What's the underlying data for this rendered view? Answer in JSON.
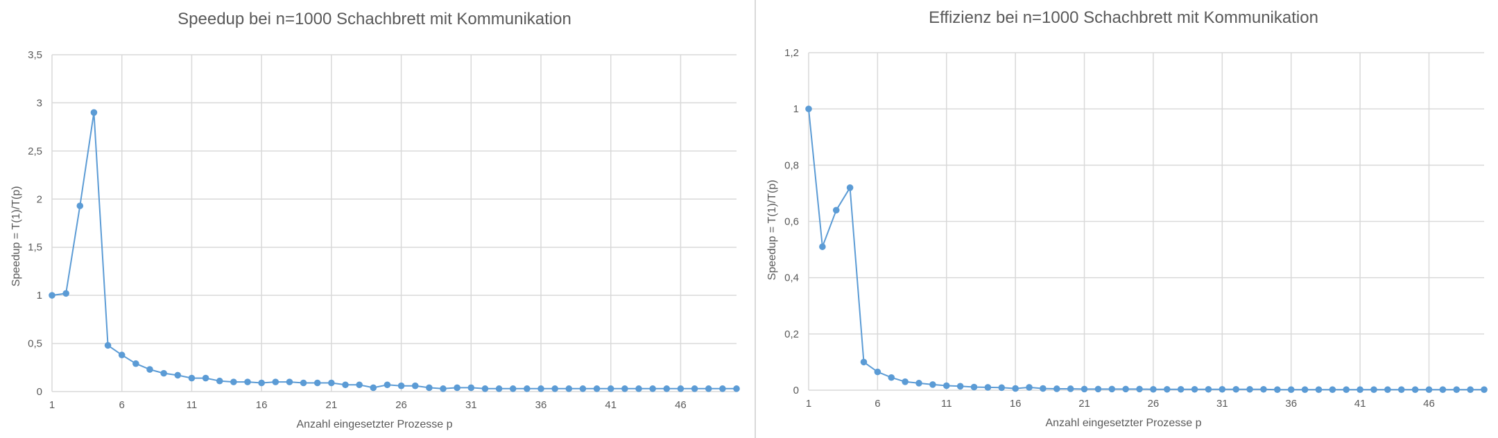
{
  "colors": {
    "series": "#5b9bd5",
    "grid": "#d9d9d9",
    "text": "#595959",
    "divider": "#d9d9d9"
  },
  "chart_data": [
    {
      "type": "line",
      "title": "Speedup bei n=1000 Schachbrett mit Kommunikation",
      "xlabel": "Anzahl eingesetzter Prozesse p",
      "ylabel": "Speedup = T(1)/T(p)",
      "xlim": [
        1,
        50
      ],
      "ylim": [
        0,
        3.5
      ],
      "xticks": [
        1,
        6,
        11,
        16,
        21,
        26,
        31,
        36,
        41,
        46
      ],
      "xtick_labels": [
        "1",
        "6",
        "11",
        "16",
        "21",
        "26",
        "31",
        "36",
        "41",
        "46"
      ],
      "yticks": [
        0,
        0.5,
        1,
        1.5,
        2,
        2.5,
        3,
        3.5
      ],
      "ytick_labels": [
        "0",
        "0,5",
        "1",
        "1,5",
        "2",
        "2,5",
        "3",
        "3,5"
      ],
      "grid": true,
      "legend": "none",
      "series": [
        {
          "x": [
            1,
            2,
            3,
            4,
            5,
            6,
            7,
            8,
            9,
            10,
            11,
            12,
            13,
            14,
            15,
            16,
            17,
            18,
            19,
            20,
            21,
            22,
            23,
            24,
            25,
            26,
            27,
            28,
            29,
            30,
            31,
            32,
            33,
            34,
            35,
            36,
            37,
            38,
            39,
            40,
            41,
            42,
            43,
            44,
            45,
            46,
            47,
            48,
            49,
            50
          ],
          "values": [
            1.0,
            1.02,
            1.93,
            2.9,
            0.48,
            0.38,
            0.29,
            0.23,
            0.19,
            0.17,
            0.14,
            0.14,
            0.11,
            0.1,
            0.1,
            0.09,
            0.1,
            0.1,
            0.09,
            0.09,
            0.09,
            0.07,
            0.07,
            0.04,
            0.07,
            0.06,
            0.06,
            0.04,
            0.03,
            0.04,
            0.04,
            0.03,
            0.03,
            0.03,
            0.03,
            0.03,
            0.03,
            0.03,
            0.03,
            0.03,
            0.03,
            0.03,
            0.03,
            0.03,
            0.03,
            0.03,
            0.03,
            0.03,
            0.03,
            0.03
          ]
        }
      ]
    },
    {
      "type": "line",
      "title": "Effizienz bei n=1000 Schachbrett mit Kommunikation",
      "xlabel": "Anzahl eingesetzter Prozesse p",
      "ylabel": "Speedup = T(1)/T(p)",
      "xlim": [
        1,
        50
      ],
      "ylim": [
        0,
        1.2
      ],
      "xticks": [
        1,
        6,
        11,
        16,
        21,
        26,
        31,
        36,
        41,
        46
      ],
      "xtick_labels": [
        "1",
        "6",
        "11",
        "16",
        "21",
        "26",
        "31",
        "36",
        "41",
        "46"
      ],
      "yticks": [
        0,
        0.2,
        0.4,
        0.6,
        0.8,
        1,
        1.2
      ],
      "ytick_labels": [
        "0",
        "0,2",
        "0,4",
        "0,6",
        "0,8",
        "1",
        "1,2"
      ],
      "grid": true,
      "legend": "none",
      "series": [
        {
          "x": [
            1,
            2,
            3,
            4,
            5,
            6,
            7,
            8,
            9,
            10,
            11,
            12,
            13,
            14,
            15,
            16,
            17,
            18,
            19,
            20,
            21,
            22,
            23,
            24,
            25,
            26,
            27,
            28,
            29,
            30,
            31,
            32,
            33,
            34,
            35,
            36,
            37,
            38,
            39,
            40,
            41,
            42,
            43,
            44,
            45,
            46,
            47,
            48,
            49,
            50
          ],
          "values": [
            1.0,
            0.51,
            0.64,
            0.72,
            0.1,
            0.065,
            0.045,
            0.03,
            0.025,
            0.02,
            0.016,
            0.014,
            0.011,
            0.01,
            0.009,
            0.006,
            0.01,
            0.006,
            0.005,
            0.005,
            0.004,
            0.004,
            0.004,
            0.004,
            0.004,
            0.003,
            0.003,
            0.003,
            0.003,
            0.003,
            0.003,
            0.003,
            0.003,
            0.003,
            0.002,
            0.002,
            0.002,
            0.002,
            0.002,
            0.002,
            0.002,
            0.002,
            0.002,
            0.002,
            0.002,
            0.002,
            0.002,
            0.002,
            0.002,
            0.002
          ]
        }
      ]
    }
  ]
}
